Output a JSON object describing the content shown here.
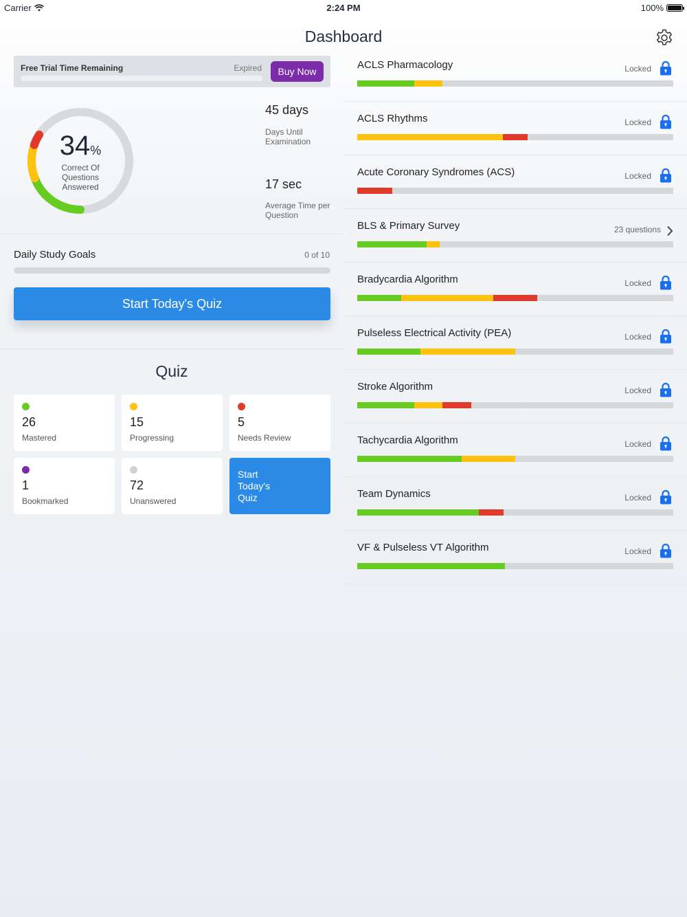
{
  "status_bar": {
    "carrier": "Carrier",
    "time": "2:24 PM",
    "battery": "100%"
  },
  "nav": {
    "title": "Dashboard",
    "settings_icon": "gear-icon"
  },
  "trial": {
    "label": "Free Trial Time Remaining",
    "status": "Expired",
    "buy_label": "Buy Now"
  },
  "score": {
    "percent": "34",
    "percent_sign": "%",
    "caption": "Correct Of Questions Answered",
    "segments": {
      "mastered": 26,
      "progressing": 15,
      "needs_review": 5
    }
  },
  "stats": [
    {
      "value": "45 days",
      "label": "Days Until Examination"
    },
    {
      "value": "17 sec",
      "label": "Average Time per Question"
    }
  ],
  "daily_goals": {
    "title": "Daily Study Goals",
    "count": "0 of 10",
    "progress": 0,
    "cta": "Start Today's Quiz"
  },
  "quiz": {
    "title": "Quiz",
    "tiles": [
      {
        "count": "26",
        "label": "Mastered",
        "color": "#66cc22"
      },
      {
        "count": "15",
        "label": "Progressing",
        "color": "#ffc20e"
      },
      {
        "count": "5",
        "label": "Needs Review",
        "color": "#e03a2d"
      },
      {
        "count": "1",
        "label": "Bookmarked",
        "color": "#7b2ca8"
      },
      {
        "count": "72",
        "label": "Unanswered",
        "color": "#d0d2d5"
      }
    ],
    "cta": "Start Today's Quiz"
  },
  "colors": {
    "green": "#66cc22",
    "yellow": "#ffc20e",
    "red": "#e03a2d",
    "blue": "#2b8ae6",
    "purple": "#7b2ca8",
    "lock": "#1a6ff0"
  },
  "topics": [
    {
      "name": "ACLS Pharmacology",
      "status": "Locked",
      "icon": "lock-icon",
      "progress": {
        "green": 0.18,
        "yellow": 0.09,
        "red": 0
      }
    },
    {
      "name": "ACLS Rhythms",
      "status": "Locked",
      "icon": "lock-icon",
      "progress": {
        "green": 0,
        "yellow": 0.46,
        "red": 0.08
      }
    },
    {
      "name": "Acute Coronary Syndromes (ACS)",
      "status": "Locked",
      "icon": "lock-icon",
      "progress": {
        "green": 0,
        "yellow": 0,
        "red": 0.11
      }
    },
    {
      "name": "BLS & Primary Survey",
      "status": "23 questions",
      "icon": "chevron-right-icon",
      "progress": {
        "green": 0.22,
        "yellow": 0.04,
        "red": 0
      }
    },
    {
      "name": "Bradycardia Algorithm",
      "status": "Locked",
      "icon": "lock-icon",
      "progress": {
        "green": 0.14,
        "yellow": 0.29,
        "red": 0.14
      }
    },
    {
      "name": "Pulseless Electrical Activity (PEA)",
      "status": "Locked",
      "icon": "lock-icon",
      "progress": {
        "green": 0.2,
        "yellow": 0.3,
        "red": 0
      }
    },
    {
      "name": "Stroke Algorithm",
      "status": "Locked",
      "icon": "lock-icon",
      "progress": {
        "green": 0.18,
        "yellow": 0.09,
        "red": 0.09
      }
    },
    {
      "name": "Tachycardia Algorithm",
      "status": "Locked",
      "icon": "lock-icon",
      "progress": {
        "green": 0.33,
        "yellow": 0.17,
        "red": 0
      }
    },
    {
      "name": "Team Dynamics",
      "status": "Locked",
      "icon": "lock-icon",
      "progress": {
        "green": 0.385,
        "yellow": 0,
        "red": 0.077
      }
    },
    {
      "name": "VF & Pulseless VT Algorithm",
      "status": "Locked",
      "icon": "lock-icon",
      "progress": {
        "green": 0.467,
        "yellow": 0,
        "red": 0
      }
    }
  ]
}
